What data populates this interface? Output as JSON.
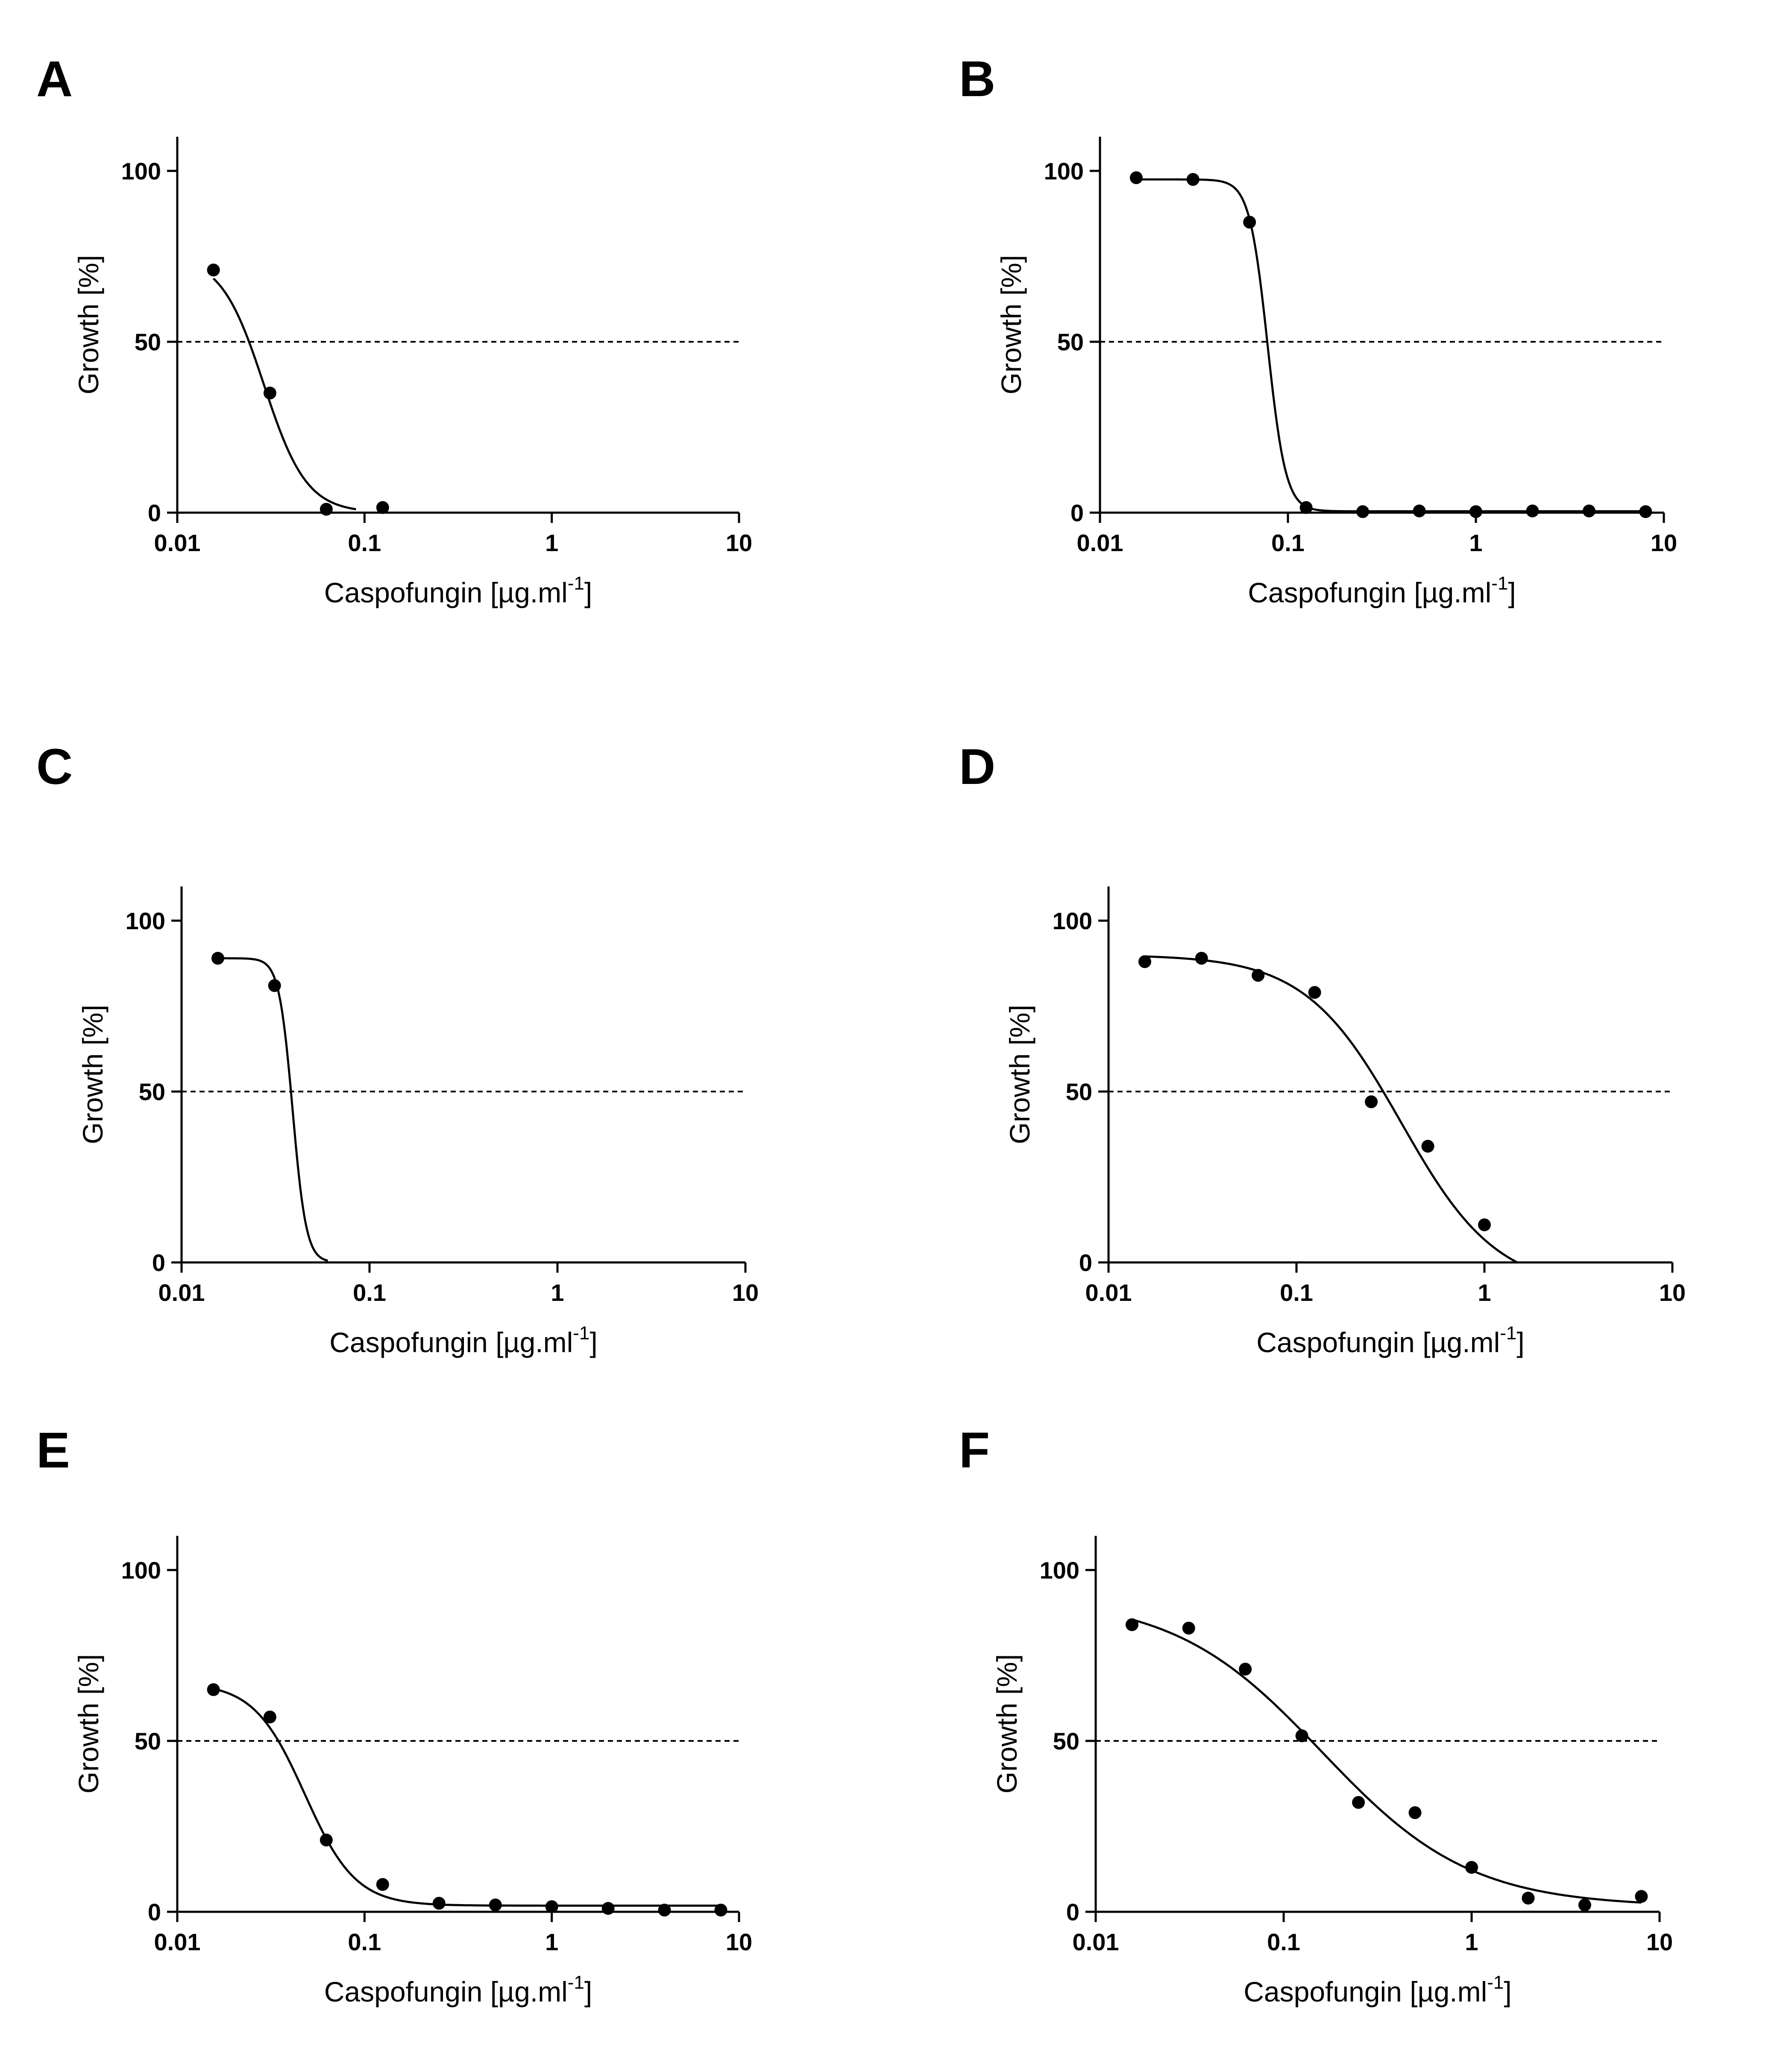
{
  "chart_data": [
    {
      "panel": "A",
      "type": "scatter",
      "xscale": "log",
      "xlabel_prefix": "Caspofungin [µg.ml",
      "xlabel_sup": "-1",
      "xlabel_suffix": "]",
      "ylabel": "Growth [%]",
      "xlim": [
        0.01,
        10
      ],
      "ylim": [
        0,
        110
      ],
      "xticks": [
        "0.01",
        "0.1",
        "1",
        "10"
      ],
      "yticks": [
        "0",
        "50",
        "100"
      ],
      "reference_line_y": 50,
      "points": [
        [
          0.0156,
          71
        ],
        [
          0.03125,
          35
        ],
        [
          0.0625,
          1
        ],
        [
          0.125,
          1.5
        ]
      ],
      "fit": {
        "top": 75,
        "bottom": 0,
        "ec50": 0.029,
        "hill": 3.8,
        "xmin": 0.0156,
        "xmax": 0.09
      }
    },
    {
      "panel": "B",
      "type": "scatter",
      "xscale": "log",
      "xlabel_prefix": "Caspofungin [µg.ml",
      "xlabel_sup": "-1",
      "xlabel_suffix": "]",
      "ylabel": "Growth [%]",
      "xlim": [
        0.01,
        10
      ],
      "ylim": [
        0,
        110
      ],
      "xticks": [
        "0.01",
        "0.1",
        "1",
        "10"
      ],
      "yticks": [
        "0",
        "50",
        "100"
      ],
      "reference_line_y": 50,
      "points": [
        [
          0.0156,
          98
        ],
        [
          0.03125,
          97.5
        ],
        [
          0.0625,
          85
        ],
        [
          0.125,
          1.5
        ],
        [
          0.25,
          0.3
        ],
        [
          0.5,
          0.5
        ],
        [
          1,
          0.3
        ],
        [
          2,
          0.5
        ],
        [
          4,
          0.5
        ],
        [
          8,
          0.3
        ]
      ],
      "fit": {
        "top": 97.5,
        "bottom": 0.4,
        "ec50": 0.078,
        "hill": 9,
        "xmin": 0.0156,
        "xmax": 8
      }
    },
    {
      "panel": "C",
      "type": "scatter",
      "xscale": "log",
      "xlabel_prefix": "Caspofungin [µg.ml",
      "xlabel_sup": "-1",
      "xlabel_suffix": "]",
      "ylabel": "Growth [%]",
      "xlim": [
        0.01,
        10
      ],
      "ylim": [
        0,
        110
      ],
      "xticks": [
        "0.01",
        "0.1",
        "1",
        "10"
      ],
      "yticks": [
        "0",
        "50",
        "100"
      ],
      "reference_line_y": 50,
      "points": [
        [
          0.0156,
          89
        ],
        [
          0.03125,
          81
        ]
      ],
      "fit": {
        "top": 89,
        "bottom": 0,
        "ec50": 0.039,
        "hill": 12,
        "xmin": 0.0156,
        "xmax": 0.06
      }
    },
    {
      "panel": "D",
      "type": "scatter",
      "xscale": "log",
      "xlabel_prefix": "Caspofungin [µg.ml",
      "xlabel_sup": "-1",
      "xlabel_suffix": "]",
      "ylabel": "Growth [%]",
      "xlim": [
        0.01,
        10
      ],
      "ylim": [
        0,
        110
      ],
      "xticks": [
        "0.01",
        "0.1",
        "1",
        "10"
      ],
      "yticks": [
        "0",
        "50",
        "100"
      ],
      "reference_line_y": 50,
      "points": [
        [
          0.0156,
          88
        ],
        [
          0.03125,
          89
        ],
        [
          0.0625,
          84
        ],
        [
          0.125,
          79
        ],
        [
          0.25,
          47
        ],
        [
          0.5,
          34
        ],
        [
          1,
          11
        ]
      ],
      "fit": {
        "top": 90,
        "bottom": -8,
        "ec50": 0.36,
        "hill": 1.7,
        "xmin": 0.0156,
        "xmax": 2.6
      }
    },
    {
      "panel": "E",
      "type": "scatter",
      "xscale": "log",
      "xlabel_prefix": "Caspofungin [µg.ml",
      "xlabel_sup": "-1",
      "xlabel_suffix": "]",
      "ylabel": "Growth [%]",
      "xlim": [
        0.01,
        10
      ],
      "ylim": [
        0,
        110
      ],
      "xticks": [
        "0.01",
        "0.1",
        "1",
        "10"
      ],
      "yticks": [
        "0",
        "50",
        "100"
      ],
      "reference_line_y": 50,
      "points": [
        [
          0.0156,
          65
        ],
        [
          0.03125,
          57
        ],
        [
          0.0625,
          21
        ],
        [
          0.125,
          8
        ],
        [
          0.25,
          2.5
        ],
        [
          0.5,
          2
        ],
        [
          1,
          1.5
        ],
        [
          2,
          1
        ],
        [
          4,
          0.5
        ],
        [
          8,
          0.5
        ]
      ],
      "fit": {
        "top": 67,
        "bottom": 1.8,
        "ec50": 0.048,
        "hill": 3.2,
        "xmin": 0.0156,
        "xmax": 8
      }
    },
    {
      "panel": "F",
      "type": "scatter",
      "xscale": "log",
      "xlabel_prefix": "Caspofungin [µg.ml",
      "xlabel_sup": "-1",
      "xlabel_suffix": "]",
      "ylabel": "Growth [%]",
      "xlim": [
        0.01,
        10
      ],
      "ylim": [
        0,
        110
      ],
      "xticks": [
        "0.01",
        "0.1",
        "1",
        "10"
      ],
      "yticks": [
        "0",
        "50",
        "100"
      ],
      "reference_line_y": 50,
      "points": [
        [
          0.0156,
          84
        ],
        [
          0.03125,
          83
        ],
        [
          0.0625,
          71
        ],
        [
          0.125,
          51.5
        ],
        [
          0.25,
          32
        ],
        [
          0.5,
          29
        ],
        [
          1,
          13
        ],
        [
          2,
          4
        ],
        [
          4,
          2
        ],
        [
          8,
          4.5
        ]
      ],
      "fit": {
        "top": 92,
        "bottom": 1.5,
        "ec50": 0.16,
        "hill": 1.1,
        "xmin": 0.0156,
        "xmax": 8
      }
    }
  ]
}
